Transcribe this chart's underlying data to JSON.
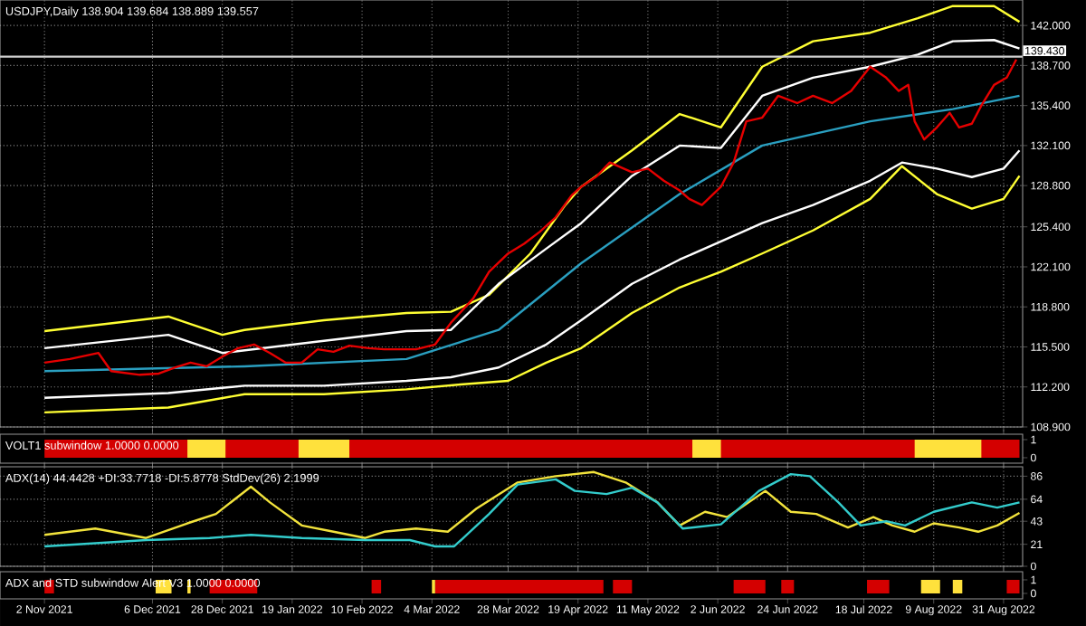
{
  "chart_data": [
    {
      "type": "line",
      "title": "USDJPY,Daily 138.904 139.684 138.889 139.557",
      "grid": true,
      "tick_labels": "y",
      "xlim": [
        "2021-10-19",
        "2022-09-06"
      ],
      "xticks": [
        {
          "value": "2021-11-02",
          "label": null
        },
        {
          "value": "2021-12-06",
          "label": null
        },
        {
          "value": "2021-12-28",
          "label": null
        },
        {
          "value": "2022-01-19",
          "label": null
        },
        {
          "value": "2022-02-10",
          "label": null
        },
        {
          "value": "2022-03-04",
          "label": null
        },
        {
          "value": "2022-03-28",
          "label": null
        },
        {
          "value": "2022-04-19",
          "label": null
        },
        {
          "value": "2022-05-11",
          "label": null
        },
        {
          "value": "2022-06-02",
          "label": null
        },
        {
          "value": "2022-06-24",
          "label": null
        },
        {
          "value": "2022-07-18",
          "label": null
        },
        {
          "value": "2022-08-09",
          "label": null
        },
        {
          "value": "2022-08-31",
          "label": null
        }
      ],
      "ylim": [
        108.9,
        144.1
      ],
      "yticks": [
        {
          "value": 108.9,
          "label": "108.900"
        },
        {
          "value": 112.2,
          "label": "112.200"
        },
        {
          "value": 115.5,
          "label": "115.500"
        },
        {
          "value": 118.8,
          "label": "118.800"
        },
        {
          "value": 122.1,
          "label": "122.100"
        },
        {
          "value": 125.4,
          "label": "125.400"
        },
        {
          "value": 128.8,
          "label": "128.800"
        },
        {
          "value": 132.1,
          "label": "132.100"
        },
        {
          "value": 135.4,
          "label": "135.400"
        },
        {
          "value": 138.7,
          "label": "138.700"
        },
        {
          "value": 142.0,
          "label": "142.000"
        }
      ],
      "ref_lines": [
        {
          "axis": "y",
          "value": 139.43,
          "label": "139.430",
          "color": "#d0d0d0"
        }
      ],
      "series": [
        {
          "color": "#ffff33",
          "x": [
            "2021-11-02",
            "2021-12-11",
            "2021-12-28",
            "2022-01-04",
            "2022-01-29",
            "2022-02-24",
            "2022-03-10",
            "2022-03-22",
            "2022-04-04",
            "2022-04-15",
            "2022-04-20",
            "2022-05-06",
            "2022-05-21",
            "2022-06-03",
            "2022-06-16",
            "2022-07-02",
            "2022-07-20",
            "2022-08-04",
            "2022-08-15",
            "2022-08-28",
            "2022-09-05"
          ],
          "values": [
            116.8,
            118.0,
            116.5,
            116.9,
            117.7,
            118.3,
            118.4,
            119.8,
            123.2,
            127.2,
            128.7,
            131.7,
            134.7,
            133.6,
            138.6,
            140.7,
            141.4,
            142.6,
            143.6,
            143.6,
            142.3
          ]
        },
        {
          "color": "#ffffff",
          "x": [
            "2021-11-02",
            "2021-12-11",
            "2021-12-28",
            "2022-01-29",
            "2022-02-24",
            "2022-03-10",
            "2022-03-25",
            "2022-04-09",
            "2022-04-20",
            "2022-05-06",
            "2022-05-21",
            "2022-06-03",
            "2022-06-16",
            "2022-07-02",
            "2022-07-20",
            "2022-08-04",
            "2022-08-15",
            "2022-08-28",
            "2022-09-05"
          ],
          "values": [
            115.4,
            116.5,
            115.0,
            116.0,
            116.8,
            116.9,
            120.7,
            123.6,
            125.7,
            129.6,
            132.1,
            131.9,
            136.2,
            137.7,
            138.6,
            139.6,
            140.7,
            140.8,
            140.1
          ]
        },
        {
          "color": "#2a9fc0",
          "x": [
            "2021-11-02",
            "2022-01-04",
            "2022-02-24",
            "2022-03-25",
            "2022-04-20",
            "2022-05-21",
            "2022-06-16",
            "2022-07-20",
            "2022-08-15",
            "2022-09-05"
          ],
          "values": [
            113.5,
            113.9,
            114.5,
            116.9,
            122.4,
            128.1,
            132.1,
            134.1,
            135.1,
            136.2
          ]
        },
        {
          "color": "#ffffff",
          "x": [
            "2021-11-02",
            "2021-12-11",
            "2022-01-04",
            "2022-01-29",
            "2022-02-24",
            "2022-03-10",
            "2022-03-25",
            "2022-04-09",
            "2022-04-20",
            "2022-05-06",
            "2022-05-21",
            "2022-06-03",
            "2022-06-16",
            "2022-07-02",
            "2022-07-20",
            "2022-07-30",
            "2022-08-10",
            "2022-08-21",
            "2022-08-31",
            "2022-09-05"
          ],
          "values": [
            111.3,
            111.7,
            112.3,
            112.3,
            112.7,
            113.0,
            113.8,
            115.7,
            117.7,
            120.7,
            122.7,
            124.2,
            125.7,
            127.2,
            129.2,
            130.7,
            130.2,
            129.5,
            130.2,
            131.7
          ]
        },
        {
          "color": "#ffff33",
          "x": [
            "2021-11-02",
            "2021-12-11",
            "2022-01-04",
            "2022-01-29",
            "2022-02-24",
            "2022-03-13",
            "2022-03-28",
            "2022-04-09",
            "2022-04-20",
            "2022-05-06",
            "2022-05-21",
            "2022-06-03",
            "2022-06-16",
            "2022-07-02",
            "2022-07-20",
            "2022-07-30",
            "2022-08-10",
            "2022-08-21",
            "2022-08-31",
            "2022-09-05"
          ],
          "values": [
            110.1,
            110.5,
            111.6,
            111.6,
            112.0,
            112.4,
            112.7,
            114.2,
            115.4,
            118.3,
            120.4,
            121.7,
            123.2,
            125.1,
            127.7,
            130.4,
            128.1,
            126.9,
            127.7,
            129.6
          ]
        },
        {
          "color": "#e60000",
          "x": [
            "2021-11-02",
            "2021-11-10",
            "2021-11-19",
            "2021-11-23",
            "2021-12-02",
            "2021-12-08",
            "2021-12-13",
            "2021-12-18",
            "2021-12-23",
            "2021-12-28",
            "2022-01-02",
            "2022-01-07",
            "2022-01-12",
            "2022-01-17",
            "2022-01-22",
            "2022-01-27",
            "2022-02-01",
            "2022-02-06",
            "2022-02-12",
            "2022-02-17",
            "2022-02-22",
            "2022-02-27",
            "2022-03-05",
            "2022-03-10",
            "2022-03-17",
            "2022-03-22",
            "2022-03-28",
            "2022-04-02",
            "2022-04-07",
            "2022-04-12",
            "2022-04-17",
            "2022-04-20",
            "2022-04-25",
            "2022-04-29",
            "2022-05-06",
            "2022-05-11",
            "2022-05-16",
            "2022-05-21",
            "2022-05-24",
            "2022-05-28",
            "2022-06-03",
            "2022-06-07",
            "2022-06-11",
            "2022-06-16",
            "2022-06-21",
            "2022-06-27",
            "2022-07-02",
            "2022-07-08",
            "2022-07-14",
            "2022-07-20",
            "2022-07-25",
            "2022-07-29",
            "2022-08-01",
            "2022-08-03",
            "2022-08-06",
            "2022-08-10",
            "2022-08-14",
            "2022-08-17",
            "2022-08-21",
            "2022-08-24",
            "2022-08-28",
            "2022-09-01",
            "2022-09-04"
          ],
          "values": [
            114.2,
            114.5,
            115.0,
            113.5,
            113.2,
            113.3,
            113.8,
            114.2,
            113.9,
            114.7,
            115.4,
            115.7,
            115.0,
            114.2,
            114.2,
            115.3,
            115.1,
            115.6,
            115.4,
            115.3,
            115.3,
            115.3,
            115.7,
            117.5,
            119.5,
            121.7,
            123.2,
            124.0,
            125.0,
            126.2,
            128.0,
            128.7,
            129.6,
            130.7,
            129.9,
            130.2,
            129.2,
            128.4,
            127.7,
            127.2,
            128.7,
            130.7,
            134.1,
            134.4,
            136.2,
            135.6,
            136.2,
            135.6,
            136.6,
            138.6,
            137.7,
            136.6,
            137.1,
            134.1,
            132.6,
            133.6,
            134.8,
            133.6,
            133.9,
            135.4,
            137.1,
            137.7,
            139.2
          ]
        }
      ]
    },
    {
      "type": "area",
      "title": "VOLT1 subwindow 1.0000 0.0000",
      "tick_labels": "y",
      "xlim": [
        "2021-10-19",
        "2022-09-06"
      ],
      "xticks": [
        {
          "value": "2021-11-02",
          "label": null
        },
        {
          "value": "2021-12-06",
          "label": null
        },
        {
          "value": "2021-12-28",
          "label": null
        },
        {
          "value": "2022-01-19",
          "label": null
        },
        {
          "value": "2022-02-10",
          "label": null
        },
        {
          "value": "2022-03-04",
          "label": null
        },
        {
          "value": "2022-03-28",
          "label": null
        },
        {
          "value": "2022-04-19",
          "label": null
        },
        {
          "value": "2022-05-11",
          "label": null
        },
        {
          "value": "2022-06-02",
          "label": null
        },
        {
          "value": "2022-06-24",
          "label": null
        },
        {
          "value": "2022-07-18",
          "label": null
        },
        {
          "value": "2022-08-09",
          "label": null
        },
        {
          "value": "2022-08-31",
          "label": null
        }
      ],
      "ylim": [
        -0.3,
        1.3
      ],
      "yticks": [
        0,
        1
      ],
      "series": [
        {
          "color": "#d40000",
          "x": [
            "2021-11-02",
            "2022-09-05"
          ],
          "values": [
            1,
            1
          ]
        },
        {
          "color": "#ffe13c",
          "x": [
            "2021-12-17",
            "2021-12-29"
          ],
          "values": [
            1,
            1
          ]
        },
        {
          "color": "#ffe13c",
          "x": [
            "2022-01-21",
            "2022-02-06"
          ],
          "values": [
            1,
            1
          ]
        },
        {
          "color": "#ffe13c",
          "x": [
            "2022-05-25",
            "2022-06-03"
          ],
          "values": [
            1,
            1
          ]
        },
        {
          "color": "#ffe13c",
          "x": [
            "2022-08-03",
            "2022-08-24"
          ],
          "values": [
            1,
            1
          ]
        }
      ]
    },
    {
      "type": "line",
      "title": "ADX(14) 44.4428 +DI:33.7718 -DI:5.8778  StdDev(26) 2.1999",
      "grid": true,
      "tick_labels": "y",
      "xlim": [
        "2021-10-19",
        "2022-09-06"
      ],
      "xticks": [
        {
          "value": "2021-11-02",
          "label": null
        },
        {
          "value": "2021-12-06",
          "label": null
        },
        {
          "value": "2021-12-28",
          "label": null
        },
        {
          "value": "2022-01-19",
          "label": null
        },
        {
          "value": "2022-02-10",
          "label": null
        },
        {
          "value": "2022-03-04",
          "label": null
        },
        {
          "value": "2022-03-28",
          "label": null
        },
        {
          "value": "2022-04-19",
          "label": null
        },
        {
          "value": "2022-05-11",
          "label": null
        },
        {
          "value": "2022-06-02",
          "label": null
        },
        {
          "value": "2022-06-24",
          "label": null
        },
        {
          "value": "2022-07-18",
          "label": null
        },
        {
          "value": "2022-08-09",
          "label": null
        },
        {
          "value": "2022-08-31",
          "label": null
        }
      ],
      "ylim": [
        0,
        95
      ],
      "yticks": [
        0,
        21,
        43,
        64,
        86
      ],
      "series": [
        {
          "color": "#f2e33c",
          "x": [
            "2021-11-02",
            "2021-11-18",
            "2021-12-04",
            "2021-12-17",
            "2021-12-26",
            "2022-01-06",
            "2022-01-12",
            "2022-01-22",
            "2022-02-01",
            "2022-02-11",
            "2022-02-17",
            "2022-02-27",
            "2022-03-09",
            "2022-03-18",
            "2022-03-31",
            "2022-04-12",
            "2022-04-24",
            "2022-05-04",
            "2022-05-14",
            "2022-05-21",
            "2022-05-29",
            "2022-06-05",
            "2022-06-17",
            "2022-06-25",
            "2022-07-03",
            "2022-07-13",
            "2022-07-21",
            "2022-07-27",
            "2022-08-03",
            "2022-08-09",
            "2022-08-17",
            "2022-08-23",
            "2022-08-29",
            "2022-09-05"
          ],
          "values": [
            30,
            36,
            27,
            41,
            50,
            76,
            61,
            39,
            33,
            27,
            33,
            36,
            33,
            55,
            80,
            86,
            90,
            80,
            61,
            39,
            52,
            47,
            72,
            52,
            50,
            37,
            47,
            39,
            33,
            41,
            37,
            33,
            39,
            51
          ]
        },
        {
          "color": "#33cccc",
          "x": [
            "2021-11-02",
            "2021-12-04",
            "2021-12-24",
            "2022-01-06",
            "2022-01-22",
            "2022-02-11",
            "2022-02-25",
            "2022-03-05",
            "2022-03-11",
            "2022-03-22",
            "2022-03-31",
            "2022-04-12",
            "2022-04-18",
            "2022-04-28",
            "2022-05-06",
            "2022-05-14",
            "2022-05-22",
            "2022-06-03",
            "2022-06-15",
            "2022-06-25",
            "2022-07-01",
            "2022-07-10",
            "2022-07-17",
            "2022-07-25",
            "2022-07-31",
            "2022-08-09",
            "2022-08-21",
            "2022-08-29",
            "2022-09-05"
          ],
          "values": [
            19,
            25,
            27,
            30,
            27,
            25,
            25,
            19,
            19,
            50,
            78,
            83,
            72,
            69,
            75,
            61,
            36,
            40,
            72,
            88,
            86,
            61,
            39,
            43,
            39,
            52,
            61,
            56,
            61
          ]
        }
      ]
    },
    {
      "type": "area",
      "title": "ADX and STD subwindow Alert V3 1.0000 0.0000",
      "xlim": [
        "2021-10-19",
        "2022-09-06"
      ],
      "xticks": [
        {
          "value": "2021-11-02",
          "label": "2 Nov 2021"
        },
        {
          "value": "2021-12-06",
          "label": "6 Dec 2021"
        },
        {
          "value": "2021-12-28",
          "label": "28 Dec 2021"
        },
        {
          "value": "2022-01-19",
          "label": "19 Jan 2022"
        },
        {
          "value": "2022-02-10",
          "label": "10 Feb 2022"
        },
        {
          "value": "2022-03-04",
          "label": "4 Mar 2022"
        },
        {
          "value": "2022-03-28",
          "label": "28 Mar 2022"
        },
        {
          "value": "2022-04-19",
          "label": "19 Apr 2022"
        },
        {
          "value": "2022-05-11",
          "label": "11 May 2022"
        },
        {
          "value": "2022-06-02",
          "label": "2 Jun 2022"
        },
        {
          "value": "2022-06-24",
          "label": "24 Jun 2022"
        },
        {
          "value": "2022-07-18",
          "label": "18 Jul 2022"
        },
        {
          "value": "2022-08-09",
          "label": "9 Aug 2022"
        },
        {
          "value": "2022-08-31",
          "label": "31 Aug 2022"
        }
      ],
      "ylim": [
        -0.4,
        1.6
      ],
      "yticks": [
        0,
        1
      ],
      "series": [
        {
          "color": "#d40000",
          "x": [
            "2021-11-02",
            "2021-11-02",
            "2021-11-05",
            "2021-11-05",
            "2021-12-24",
            "2021-12-24",
            "2022-01-08",
            "2022-01-08",
            "2022-02-13",
            "2022-02-13",
            "2022-02-16",
            "2022-02-16",
            "2022-03-05",
            "2022-03-05",
            "2022-04-27",
            "2022-04-27",
            "2022-04-30",
            "2022-04-30",
            "2022-05-06",
            "2022-05-06",
            "2022-06-07",
            "2022-06-07",
            "2022-06-17",
            "2022-06-17",
            "2022-06-22",
            "2022-06-22",
            "2022-06-26",
            "2022-06-26",
            "2022-07-19",
            "2022-07-19",
            "2022-07-26",
            "2022-07-26",
            "2022-09-01",
            "2022-09-01",
            "2022-09-05",
            "2022-09-05"
          ],
          "values": [
            0,
            1,
            1,
            0,
            0,
            1,
            1,
            0,
            0,
            1,
            1,
            0,
            0,
            1,
            1,
            0,
            0,
            1,
            1,
            0,
            0,
            1,
            1,
            0,
            0,
            1,
            1,
            0,
            0,
            1,
            1,
            0,
            0,
            1,
            1,
            0
          ]
        },
        {
          "color": "#ffe13c",
          "x": [
            "2021-12-07",
            "2021-12-07",
            "2021-12-12",
            "2021-12-12",
            "2021-12-17",
            "2021-12-17",
            "2021-12-18",
            "2021-12-18",
            "2022-03-04",
            "2022-03-04",
            "2022-03-05",
            "2022-03-05",
            "2022-08-05",
            "2022-08-05",
            "2022-08-11",
            "2022-08-11",
            "2022-08-15",
            "2022-08-15",
            "2022-08-18",
            "2022-08-18"
          ],
          "values": [
            0,
            1,
            1,
            0,
            0,
            1,
            1,
            0,
            0,
            1,
            1,
            0,
            0,
            1,
            1,
            0,
            0,
            1,
            1,
            0
          ]
        }
      ]
    }
  ]
}
